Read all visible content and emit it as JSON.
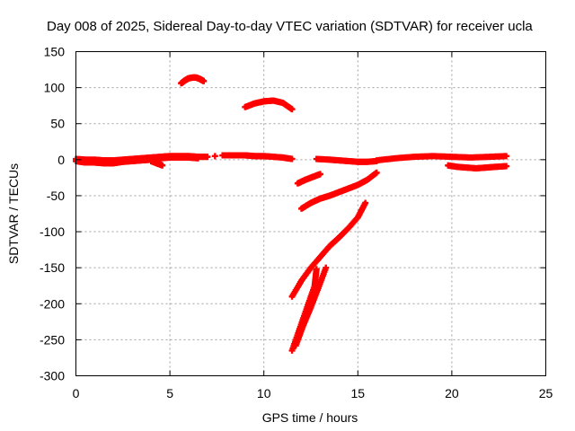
{
  "chart_data": {
    "type": "scatter",
    "title": "Day 008 of 2025, Sidereal Day-to-day VTEC variation (SDTVAR) for receiver ucla",
    "xlabel": "GPS time / hours",
    "ylabel": "SDTVAR / TECUs",
    "xlim": [
      0,
      25
    ],
    "ylim": [
      -300,
      150
    ],
    "xticks": [
      0,
      5,
      10,
      15,
      20,
      25
    ],
    "yticks": [
      -300,
      -250,
      -200,
      -150,
      -100,
      -50,
      0,
      50,
      100,
      150
    ],
    "grid": true,
    "marker": "plus",
    "color": "#ff0000",
    "series": [
      {
        "arcs": [
          {
            "x": [
              0.0,
              0.5,
              1.0,
              1.5,
              2.0,
              2.5,
              3.0,
              3.5,
              4.0,
              4.5,
              5.0,
              5.5,
              6.0,
              6.5
            ],
            "y": [
              -2,
              -4,
              -4,
              -5,
              -5,
              -3,
              -2,
              -1,
              0,
              2,
              3,
              3,
              3,
              2
            ]
          },
          {
            "x": [
              0.0,
              0.5,
              1.0,
              1.5,
              2.0,
              2.5,
              3.0,
              3.5,
              4.0,
              4.5,
              5.0,
              5.5,
              6.0,
              6.5,
              7.0
            ],
            "y": [
              1,
              0,
              0,
              -1,
              -1,
              0,
              1,
              2,
              3,
              4,
              5,
              5,
              5,
              4,
              4
            ]
          },
          {
            "x": [
              4.0,
              4.3,
              4.6
            ],
            "y": [
              -2,
              -5,
              -8
            ]
          },
          {
            "x": [
              5.6,
              5.8,
              6.0,
              6.2,
              6.4,
              6.6,
              6.8
            ],
            "y": [
              106,
              110,
              113,
              114,
              114,
              112,
              109
            ]
          },
          {
            "x": [
              7.4
            ],
            "y": [
              5
            ]
          },
          {
            "x": [
              7.8,
              8.5,
              9.0,
              9.5,
              10.0,
              10.5,
              11.0,
              11.5
            ],
            "y": [
              6,
              6,
              6,
              5,
              5,
              4,
              3,
              1
            ]
          },
          {
            "x": [
              9.0,
              9.5,
              10.0,
              10.5,
              11.0,
              11.5
            ],
            "y": [
              73,
              78,
              81,
              82,
              79,
              70
            ]
          },
          {
            "x": [
              11.8,
              12.2,
              12.6,
              13.0
            ],
            "y": [
              -33,
              -28,
              -24,
              -20
            ]
          },
          {
            "x": [
              12.0,
              12.5,
              13.0,
              13.5,
              14.0,
              14.5,
              15.0,
              15.5,
              16.0
            ],
            "y": [
              -68,
              -60,
              -54,
              -50,
              -45,
              -40,
              -35,
              -28,
              -18
            ]
          },
          {
            "x": [
              12.8,
              13.5,
              14.0,
              14.5,
              15.0,
              15.5,
              16.0
            ],
            "y": [
              1,
              0,
              -1,
              -2,
              -3,
              -3,
              -2
            ]
          },
          {
            "x": [
              11.5,
              12.0,
              12.5,
              13.0,
              13.5,
              14.0,
              14.5,
              15.0,
              15.4
            ],
            "y": [
              -190,
              -168,
              -150,
              -135,
              -120,
              -108,
              -95,
              -80,
              -60
            ]
          },
          {
            "x": [
              11.5,
              11.9,
              12.3,
              12.7,
              12.8
            ],
            "y": [
              -265,
              -235,
              -205,
              -175,
              -152
            ]
          },
          {
            "x": [
              11.7,
              12.1,
              12.5,
              12.9,
              13.3
            ],
            "y": [
              -258,
              -230,
              -205,
              -178,
              -150
            ]
          },
          {
            "x": [
              16.0,
              17.0,
              18.0,
              19.0,
              20.0,
              21.0,
              22.0,
              22.9
            ],
            "y": [
              -1,
              2,
              4,
              5,
              4,
              3,
              4,
              5
            ]
          },
          {
            "x": [
              19.8,
              20.3,
              20.8,
              21.3,
              21.8,
              22.3,
              22.9
            ],
            "y": [
              -8,
              -10,
              -11,
              -12,
              -11,
              -10,
              -9
            ]
          }
        ]
      }
    ]
  }
}
